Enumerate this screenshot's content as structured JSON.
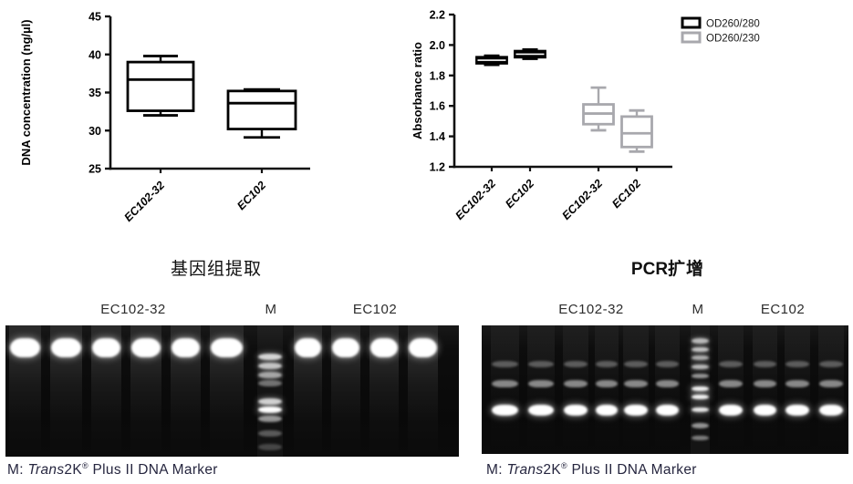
{
  "chart_data": [
    {
      "type": "box",
      "title": "",
      "ylabel": "DNA  concentration (ng/µl)",
      "xlabel": "",
      "ylim": [
        25,
        45
      ],
      "yticks": [
        25,
        30,
        35,
        40,
        45
      ],
      "ydecimals": 0,
      "grid": false,
      "categories": [
        "EC102-32",
        "EC102"
      ],
      "series": [
        {
          "name": "DNA concentration",
          "style": "open",
          "color": "#000000",
          "boxes": [
            {
              "category": "EC102-32",
              "min": 32.0,
              "q1": 32.6,
              "median": 36.7,
              "q3": 39.0,
              "max": 39.8
            },
            {
              "category": "EC102",
              "min": 29.1,
              "q1": 30.2,
              "median": 33.6,
              "q3": 35.2,
              "max": 35.4
            }
          ]
        }
      ]
    },
    {
      "type": "box",
      "title": "",
      "ylabel": "Absorbance ratio",
      "xlabel": "",
      "ylim": [
        1.2,
        2.2
      ],
      "yticks": [
        1.2,
        1.4,
        1.6,
        1.8,
        2.0,
        2.2
      ],
      "ydecimals": 1,
      "grid": false,
      "legend": {
        "position": "top-right",
        "entries": [
          {
            "label": "OD260/280",
            "color": "#000000"
          },
          {
            "label": "OD260/230",
            "color": "#a8a8ad"
          }
        ]
      },
      "categories": [
        "EC102-32",
        "EC102",
        "EC102-32",
        "EC102"
      ],
      "series": [
        {
          "name": "OD260/280",
          "style": "filled",
          "color": "#000000",
          "boxes": [
            {
              "category": "EC102-32",
              "min": 1.87,
              "q1": 1.88,
              "median": 1.9,
              "q3": 1.92,
              "max": 1.93
            },
            {
              "category": "EC102",
              "min": 1.91,
              "q1": 1.92,
              "median": 1.94,
              "q3": 1.96,
              "max": 1.97
            }
          ]
        },
        {
          "name": "OD260/230",
          "style": "open",
          "color": "#a8a8ad",
          "boxes": [
            {
              "category": "EC102-32",
              "min": 1.44,
              "q1": 1.48,
              "median": 1.55,
              "q3": 1.61,
              "max": 1.72
            },
            {
              "category": "EC102",
              "min": 1.3,
              "q1": 1.33,
              "median": 1.42,
              "q3": 1.53,
              "max": 1.57
            }
          ]
        }
      ]
    }
  ],
  "gels": [
    {
      "title": {
        "bold": "",
        "text": "基因组提取"
      },
      "lane_labels": [
        "EC102-32",
        "M",
        "EC102"
      ],
      "caption": {
        "m": "M: ",
        "trans": "Trans",
        "rest": "2K",
        "reg": "®",
        "tail": " Plus II DNA Marker"
      },
      "smear": 0.13,
      "sample_bands": [
        {
          "y": 0.095,
          "h": 0.15,
          "i": 1.0
        }
      ],
      "marker_bands": [
        {
          "y": 0.215,
          "i": 0.82
        },
        {
          "y": 0.285,
          "i": 0.75
        },
        {
          "y": 0.354,
          "i": 0.62
        },
        {
          "y": 0.42,
          "i": 0.4
        },
        {
          "y": 0.556,
          "i": 0.8
        },
        {
          "y": 0.62,
          "i": 1.0
        },
        {
          "y": 0.69,
          "i": 0.55
        },
        {
          "y": 0.8,
          "i": 0.3
        },
        {
          "y": 0.9,
          "i": 0.22
        }
      ]
    },
    {
      "title": {
        "bold": "PCR",
        "text": "扩增"
      },
      "lane_labels": [
        "EC102-32",
        "M",
        "EC102"
      ],
      "caption": {
        "m": "M: ",
        "trans": "Trans",
        "rest": "2K",
        "reg": "®",
        "tail": " Plus II DNA Marker"
      },
      "smear": 0.055,
      "sample_bands": [
        {
          "y": 0.275,
          "h": 0.05,
          "i": 0.3
        },
        {
          "y": 0.425,
          "h": 0.06,
          "i": 0.5
        },
        {
          "y": 0.615,
          "h": 0.085,
          "i": 1.0
        }
      ],
      "marker_bands": [
        {
          "y": 0.1,
          "i": 0.7
        },
        {
          "y": 0.168,
          "i": 0.75
        },
        {
          "y": 0.232,
          "i": 0.65
        },
        {
          "y": 0.303,
          "i": 0.7
        },
        {
          "y": 0.374,
          "i": 0.55
        },
        {
          "y": 0.473,
          "i": 0.95
        },
        {
          "y": 0.538,
          "i": 0.95
        },
        {
          "y": 0.638,
          "i": 0.9
        },
        {
          "y": 0.76,
          "i": 0.55
        },
        {
          "y": 0.858,
          "i": 0.45
        }
      ]
    }
  ]
}
